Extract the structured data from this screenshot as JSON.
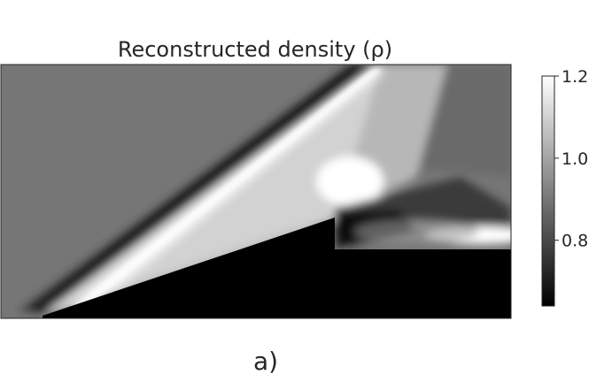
{
  "chart_data": {
    "type": "heatmap",
    "title": "Reconstructed density (ρ)",
    "colormap": "gray",
    "colorbar": {
      "min": 0.64,
      "max": 1.2,
      "ticks": [
        {
          "value": 1.2,
          "label": "1.2"
        },
        {
          "value": 1.0,
          "label": "1.0"
        },
        {
          "value": 0.8,
          "label": "0.8"
        }
      ]
    },
    "field": {
      "freestream_density": 0.87,
      "shock_peak_density": 1.2,
      "expansion_min_density": 0.64,
      "solid_region_density": 0.64
    }
  },
  "panel_label": "a)"
}
